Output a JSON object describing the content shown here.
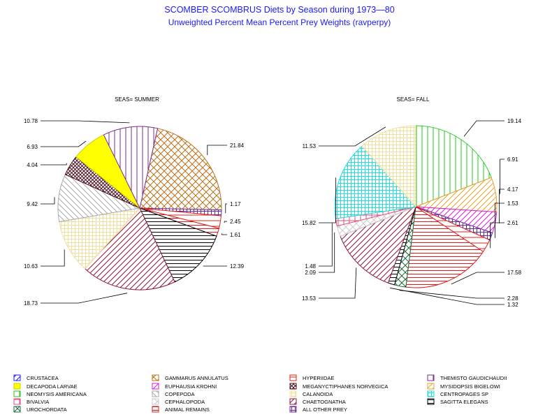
{
  "title": "SCOMBER SCOMBRUS Diets by Season during 1973—80",
  "subtitle": "Unweighted Percent Mean Percent Prey  Weights (ravperpy)",
  "chart_data": [
    {
      "type": "pie",
      "panel_label": "SEAS= SUMMER",
      "slices": [
        {
          "category": "GAMMARUS ANNULATUS",
          "value": 21.84,
          "label": "21.84"
        },
        {
          "category": "ALL OTHER PREY",
          "value": 1.17,
          "label": "1.17"
        },
        {
          "category": "HYPERIIDAE",
          "value": 2.45,
          "label": "2.45"
        },
        {
          "category": "ANIMAL REMAINS",
          "value": 1.61,
          "label": "1.61"
        },
        {
          "category": "SAGITTA ELEGANS",
          "value": 12.39,
          "label": "12.39"
        },
        {
          "category": "CHAETOGNATHA",
          "value": 18.73,
          "label": "18.73"
        },
        {
          "category": "CALANOIDA",
          "value": 10.63,
          "label": "10.63"
        },
        {
          "category": "COPEPODA",
          "value": 9.42,
          "label": "9.42"
        },
        {
          "category": "MEGANYCTIPHANES NORVEGICA",
          "value": 4.04,
          "label": "4.04"
        },
        {
          "category": "DECAPODA LARVAE",
          "value": 6.93,
          "label": "6.93"
        },
        {
          "category": "THEMISTO GAUDICHAUDII",
          "value": 10.78,
          "label": "10.78"
        }
      ]
    },
    {
      "type": "pie",
      "panel_label": "SEAS= FALL",
      "slices": [
        {
          "category": "NEOMYSIS AMERICANA",
          "value": 19.14,
          "label": "19.14"
        },
        {
          "category": "MYSIDOPSIS BIGELOWI",
          "value": 6.91,
          "label": "6.91"
        },
        {
          "category": "EUPHAUSIA KROHNI",
          "value": 4.17,
          "label": "4.17"
        },
        {
          "category": "ALL OTHER PREY",
          "value": 1.53,
          "label": "1.53"
        },
        {
          "category": "HYPERIIDAE",
          "value": 2.61,
          "label": "2.61"
        },
        {
          "category": "ANIMAL REMAINS",
          "value": 17.58,
          "label": "17.58"
        },
        {
          "category": "UROCHORDATA",
          "value": 2.28,
          "label": "2.28"
        },
        {
          "category": "SAGITTA ELEGANS",
          "value": 1.32,
          "label": "1.32"
        },
        {
          "category": "CHAETOGNATHA",
          "value": 13.53,
          "label": "13.53"
        },
        {
          "category": "CEPHALOPODA",
          "value": 2.09,
          "label": "2.09"
        },
        {
          "category": "BIVALVIA",
          "value": 1.48,
          "label": "1.48"
        },
        {
          "category": "CENTROPAGES SP",
          "value": 15.82,
          "label": "15.82"
        },
        {
          "category": "CALANOIDA",
          "value": 11.53,
          "label": "11.53"
        }
      ]
    }
  ],
  "legend": [
    {
      "label": "CRUSTACEA",
      "color": "#1a1aff",
      "pattern": "diag-right"
    },
    {
      "label": "GAMMARUS ANNULATUS",
      "color": "#b8731a",
      "pattern": "crosshatch-diag"
    },
    {
      "label": "HYPERIIDAE",
      "color": "#e0241a",
      "pattern": "horizontal-sparse"
    },
    {
      "label": "THEMISTO GAUDICHAUDII",
      "color": "#7a2e8e",
      "pattern": "vertical"
    },
    {
      "label": "DECAPODA LARVAE",
      "color": "#ffff00",
      "pattern": "solid"
    },
    {
      "label": "EUPHAUSIA KROHNI",
      "color": "#d81ed8",
      "pattern": "diag-right"
    },
    {
      "label": "MEGANYCTIPHANES NORVEGICA",
      "color": "#4a1020",
      "pattern": "crosshatch-diag-dense"
    },
    {
      "label": "MYSIDOPSIS BIGELOWI",
      "color": "#f0a030",
      "pattern": "diag-right"
    },
    {
      "label": "NEOMYSIS AMERICANA",
      "color": "#22cc22",
      "pattern": "vertical"
    },
    {
      "label": "COPEPODA",
      "color": "#aaaaaa",
      "pattern": "diag-left"
    },
    {
      "label": "CALANOIDA",
      "color": "#f0e0a0",
      "pattern": "grid"
    },
    {
      "label": "CENTROPAGES SP",
      "color": "#22dddd",
      "pattern": "grid"
    },
    {
      "label": "BIVALVIA",
      "color": "#e05080",
      "pattern": "grid-sparse"
    },
    {
      "label": "CEPHALOPODA",
      "color": "#cccccc",
      "pattern": "crosshatch-diag"
    },
    {
      "label": "CHAETOGNATHA",
      "color": "#8a1a3a",
      "pattern": "diag-right"
    },
    {
      "label": "SAGITTA ELEGANS",
      "color": "#000000",
      "pattern": "horizontal"
    },
    {
      "label": "UROCHORDATA",
      "color": "#1a6a3a",
      "pattern": "crosshatch-diag"
    },
    {
      "label": "ANIMAL REMAINS",
      "color": "#e01a1a",
      "pattern": "horizontal"
    },
    {
      "label": "ALL OTHER PREY",
      "color": "#6a2aa0",
      "pattern": "grid"
    }
  ]
}
